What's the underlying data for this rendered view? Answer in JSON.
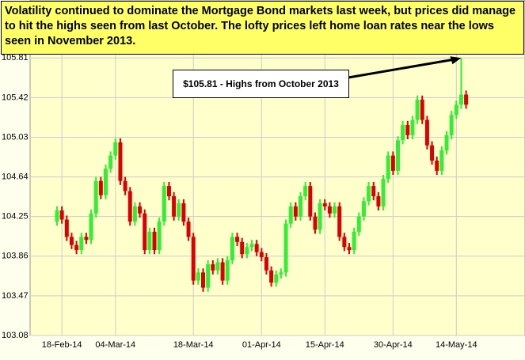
{
  "chart_data": {
    "type": "candlestick",
    "title": "Volatility continued to dominate the Mortgage Bond markets last week, but prices did manage to hit the highs seen from last October.  The lofty prices left home loan rates near the lows seen in November 2013.",
    "annotation": "$105.81 - Highs from October 2013",
    "categories": [
      null,
      "18-Feb-14",
      null,
      null,
      null,
      null,
      null,
      null,
      null,
      null,
      null,
      null,
      "04-Mar-14",
      null,
      null,
      null,
      null,
      null,
      null,
      null,
      null,
      null,
      null,
      null,
      null,
      null,
      null,
      null,
      "18-Mar-14",
      null,
      null,
      null,
      null,
      null,
      null,
      null,
      null,
      null,
      null,
      null,
      null,
      null,
      "01-Apr-14",
      null,
      null,
      null,
      null,
      null,
      null,
      null,
      null,
      null,
      null,
      null,
      null,
      "15-Apr-14",
      null,
      null,
      null,
      null,
      null,
      null,
      null,
      null,
      null,
      null,
      null,
      null,
      null,
      "30-Apr-14",
      null,
      null,
      null,
      null,
      null,
      null,
      null,
      null,
      null,
      null,
      null,
      null,
      "14-May-14",
      null,
      null
    ],
    "open": [
      104.2,
      104.31,
      104.22,
      104.05,
      103.97,
      103.92,
      104.05,
      104.02,
      104.28,
      104.6,
      104.46,
      104.72,
      104.85,
      104.98,
      104.6,
      104.5,
      104.2,
      104.35,
      104.28,
      103.92,
      104.1,
      103.92,
      104.2,
      104.55,
      104.45,
      104.25,
      104.38,
      104.2,
      104.05,
      103.62,
      103.7,
      103.55,
      103.78,
      103.72,
      103.8,
      103.62,
      103.82,
      104.05,
      104.0,
      103.88,
      103.95,
      103.98,
      103.9,
      103.85,
      103.72,
      103.6,
      103.68,
      103.7,
      104.18,
      104.35,
      104.25,
      104.45,
      104.55,
      104.25,
      104.12,
      104.38,
      104.35,
      104.28,
      104.35,
      104.05,
      103.95,
      103.92,
      104.1,
      104.25,
      104.4,
      104.55,
      104.45,
      104.35,
      104.62,
      104.85,
      104.7,
      105.0,
      105.15,
      105.05,
      105.2,
      105.4,
      105.2,
      104.95,
      104.8,
      104.7,
      104.9,
      105.05,
      105.25,
      105.35,
      105.45
    ],
    "high": [
      104.35,
      104.35,
      104.26,
      104.09,
      104.01,
      104.09,
      104.09,
      104.32,
      104.64,
      104.64,
      104.76,
      104.89,
      105.02,
      105.02,
      104.64,
      104.54,
      104.39,
      104.39,
      104.32,
      104.14,
      104.14,
      104.24,
      104.59,
      104.59,
      104.49,
      104.42,
      104.42,
      104.24,
      104.09,
      103.74,
      103.74,
      103.82,
      103.82,
      103.84,
      103.84,
      103.86,
      104.09,
      104.09,
      104.04,
      103.99,
      104.02,
      104.02,
      103.94,
      103.89,
      103.76,
      103.72,
      103.74,
      104.22,
      104.39,
      104.39,
      104.49,
      104.59,
      104.59,
      104.29,
      104.42,
      104.42,
      104.39,
      104.39,
      104.39,
      104.09,
      103.99,
      104.14,
      104.29,
      104.44,
      104.59,
      104.59,
      104.49,
      104.66,
      104.89,
      104.89,
      105.04,
      105.19,
      105.19,
      105.24,
      105.44,
      105.44,
      105.24,
      104.99,
      104.84,
      104.94,
      105.09,
      105.29,
      105.39,
      105.81,
      105.49
    ],
    "low": [
      104.16,
      104.18,
      104.01,
      103.93,
      103.88,
      103.88,
      103.98,
      103.98,
      104.24,
      104.42,
      104.42,
      104.68,
      104.81,
      104.56,
      104.46,
      104.16,
      104.16,
      104.24,
      103.88,
      103.88,
      103.88,
      103.88,
      104.16,
      104.41,
      104.21,
      104.21,
      104.16,
      104.01,
      103.58,
      103.58,
      103.51,
      103.51,
      103.68,
      103.68,
      103.58,
      103.58,
      103.78,
      103.96,
      103.84,
      103.84,
      103.91,
      103.86,
      103.81,
      103.68,
      103.56,
      103.56,
      103.64,
      103.66,
      104.14,
      104.21,
      104.21,
      104.41,
      104.21,
      104.08,
      104.08,
      104.31,
      104.24,
      104.24,
      104.01,
      103.91,
      103.88,
      103.88,
      104.06,
      104.21,
      104.36,
      104.41,
      104.31,
      104.31,
      104.58,
      104.66,
      104.66,
      104.96,
      105.01,
      105.01,
      105.16,
      105.16,
      104.91,
      104.76,
      104.66,
      104.66,
      104.86,
      105.01,
      105.21,
      105.31,
      105.31
    ],
    "close": [
      104.31,
      104.22,
      104.05,
      103.97,
      103.92,
      104.05,
      104.02,
      104.28,
      104.6,
      104.46,
      104.72,
      104.85,
      104.98,
      104.6,
      104.5,
      104.2,
      104.35,
      104.28,
      103.92,
      104.1,
      103.92,
      104.2,
      104.55,
      104.45,
      104.25,
      104.38,
      104.2,
      104.05,
      103.62,
      103.7,
      103.55,
      103.78,
      103.72,
      103.8,
      103.62,
      103.82,
      104.05,
      104.0,
      103.88,
      103.95,
      103.98,
      103.9,
      103.85,
      103.72,
      103.6,
      103.68,
      103.7,
      104.18,
      104.35,
      104.25,
      104.45,
      104.55,
      104.25,
      104.12,
      104.38,
      104.35,
      104.28,
      104.35,
      104.05,
      103.95,
      103.92,
      104.1,
      104.25,
      104.4,
      104.55,
      104.45,
      104.35,
      104.62,
      104.85,
      104.7,
      105.0,
      105.15,
      105.05,
      105.2,
      105.4,
      105.2,
      104.95,
      104.8,
      104.7,
      104.9,
      105.05,
      105.25,
      105.35,
      105.45,
      105.35
    ],
    "up_color": "#33ee33",
    "down_color": "#dd0000",
    "ylim": [
      103.08,
      106.38
    ],
    "yticks": [
      103.08,
      103.47,
      103.86,
      104.25,
      104.64,
      105.03,
      105.42,
      105.81
    ],
    "grid": true
  }
}
